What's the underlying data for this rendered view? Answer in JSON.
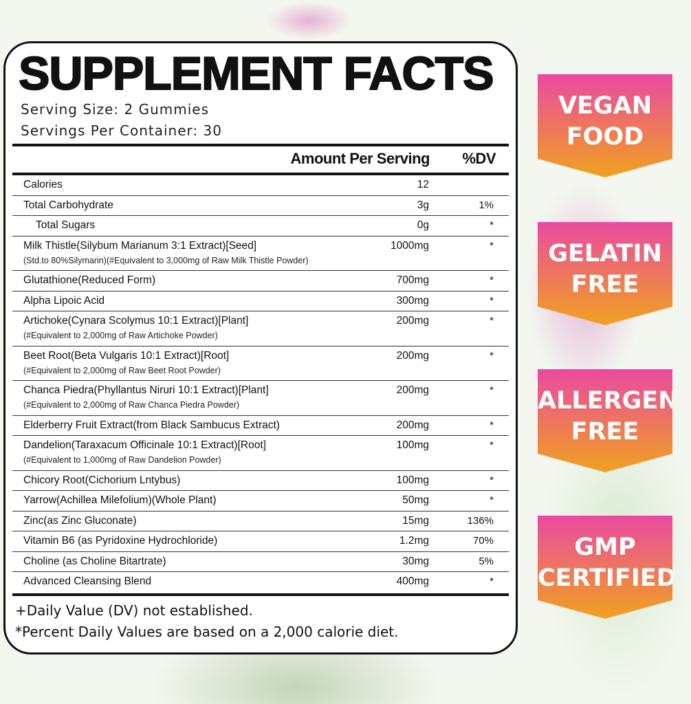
{
  "title": "SUPPLEMENT FACTS",
  "serving_size": "Serving Size: 2 Gummies",
  "servings_per_container": "Servings Per Container: 30",
  "header": {
    "amount": "Amount Per Serving",
    "dv": "%DV"
  },
  "rows": [
    {
      "name": "Calories",
      "amount": "12",
      "dv": ""
    },
    {
      "name": "Total Carbohydrate",
      "amount": "3g",
      "dv": "1%"
    },
    {
      "name": "Total Sugars",
      "amount": "0g",
      "dv": "*",
      "indent": true
    },
    {
      "name": "Milk Thistle(Silybum Marianum 3:1 Extract)[Seed]",
      "sub": "(Std.to 80%Silymarin)(#Equivalent to 3,000mg of Raw Milk Thistle Powder)",
      "amount": "1000mg",
      "dv": "*"
    },
    {
      "name": "Glutathione(Reduced Form)",
      "amount": "700mg",
      "dv": "*"
    },
    {
      "name": "Alpha Lipoic Acid",
      "amount": "300mg",
      "dv": "*"
    },
    {
      "name": "Artichoke(Cynara Scolymus 10:1 Extract)[Plant]",
      "sub": "(#Equivalent to 2,000mg of Raw Artichoke Powder)",
      "amount": "200mg",
      "dv": "*"
    },
    {
      "name": "Beet Root(Beta Vulgaris 10:1 Extract)[Root]",
      "sub": "(#Equivalent to 2,000mg of Raw Beet Root Powder)",
      "amount": "200mg",
      "dv": "*"
    },
    {
      "name": "Chanca Piedra(Phyllantus Niruri 10:1 Extract)[Plant]",
      "sub": "(#Equivalent to 2,000mg of Raw Chanca Piedra Powder)",
      "amount": "200mg",
      "dv": "*"
    },
    {
      "name": "Elderberry Fruit Extract(from Black Sambucus Extract)",
      "amount": "200mg",
      "dv": "*"
    },
    {
      "name": "Dandelion(Taraxacum Officinale 10:1 Extract)[Root]",
      "sub": "(#Equivalent to 1,000mg of Raw Dandelion Powder)",
      "amount": "100mg",
      "dv": "*"
    },
    {
      "name": "Chicory Root(Cichorium Lntybus)",
      "amount": "100mg",
      "dv": "*"
    },
    {
      "name": "Yarrow(Achillea Milefolium)(Whole Plant)",
      "amount": "50mg",
      "dv": "*"
    },
    {
      "name": "Zinc(as Zinc Gluconate)",
      "amount": "15mg",
      "dv": "136%"
    },
    {
      "name": "Vitamin B6 (as Pyridoxine Hydrochloride)",
      "amount": "1.2mg",
      "dv": "70%"
    },
    {
      "name": "Choline (as Choline Bitartrate)",
      "amount": "30mg",
      "dv": "5%"
    },
    {
      "name": "Advanced Cleansing Blend",
      "amount": "400mg",
      "dv": "*"
    }
  ],
  "footnotes": [
    "+Daily Value (DV) not established.",
    "*Percent Daily Values are based on a 2,000 calorie diet."
  ],
  "badges": [
    {
      "line1": "VEGAN",
      "line2": "FOOD"
    },
    {
      "line1": "GELATIN",
      "line2": "FREE"
    },
    {
      "line1": "ALLERGEN",
      "line2": "FREE"
    },
    {
      "line1": "GMP",
      "line2": "CERTIFIED"
    }
  ],
  "colors": {
    "badge_top": "#ea4aa0",
    "badge_bottom": "#f0a11e",
    "text": "#111111"
  }
}
